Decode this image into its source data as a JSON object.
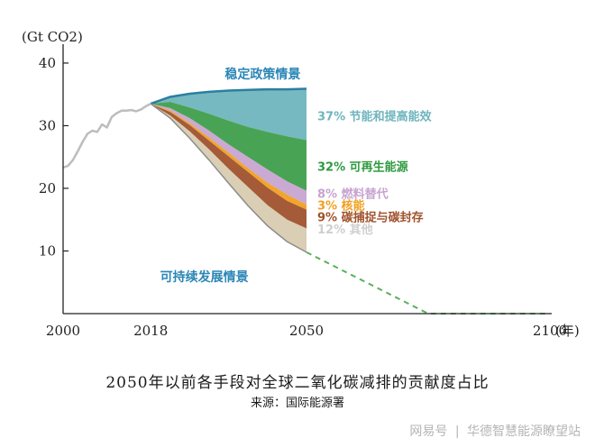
{
  "chart_data": {
    "type": "area",
    "ylabel": "(Gt CO2)",
    "xlabel": "(年)",
    "y_ticks": [
      10,
      20,
      30,
      40
    ],
    "x_ticks": [
      2000,
      2018,
      2050,
      2100
    ],
    "ylim": [
      0,
      41
    ],
    "xlim": [
      2000,
      2100
    ],
    "grid": false,
    "historical": {
      "name": "",
      "x": [
        2000,
        2001,
        2002,
        2003,
        2004,
        2005,
        2006,
        2007,
        2008,
        2009,
        2010,
        2011,
        2012,
        2013,
        2014,
        2015,
        2016,
        2017,
        2018
      ],
      "y": [
        23.3,
        23.6,
        24.5,
        25.9,
        27.4,
        28.7,
        29.2,
        29.0,
        30.2,
        29.7,
        31.4,
        32.0,
        32.4,
        32.4,
        32.5,
        32.3,
        32.6,
        33.1,
        33.5
      ]
    },
    "scenario_x": [
      2018,
      2022,
      2026,
      2030,
      2034,
      2038,
      2042,
      2046,
      2050
    ],
    "stated_policies": {
      "label": "稳定政策情景",
      "y": [
        33.5,
        34.6,
        35.1,
        35.4,
        35.6,
        35.7,
        35.8,
        35.8,
        35.9
      ]
    },
    "sustainable_development": {
      "label": "可持续发展情景",
      "y": [
        33.5,
        31.2,
        28.0,
        24.5,
        20.8,
        17.2,
        14.0,
        11.5,
        9.8
      ]
    },
    "boundaries": [
      [
        33.5,
        34.6,
        35.1,
        35.4,
        35.6,
        35.7,
        35.8,
        35.8,
        35.9
      ],
      [
        33.5,
        33.8,
        32.9,
        31.9,
        30.8,
        29.8,
        29.0,
        28.3,
        27.7
      ],
      [
        33.5,
        32.8,
        31.2,
        29.2,
        27.0,
        25.0,
        23.0,
        21.1,
        19.6
      ],
      [
        33.5,
        32.4,
        30.4,
        28.1,
        25.7,
        23.2,
        20.9,
        19.0,
        17.4
      ],
      [
        33.5,
        32.2,
        30.1,
        27.6,
        25.1,
        22.6,
        20.1,
        18.0,
        16.6
      ],
      [
        33.5,
        31.6,
        29.1,
        26.2,
        23.1,
        20.2,
        17.3,
        15.0,
        13.6
      ],
      [
        33.5,
        31.2,
        28.0,
        24.5,
        20.8,
        17.2,
        14.0,
        11.5,
        9.8
      ]
    ],
    "series": [
      {
        "name": "37% 节能和提高能效",
        "share": 37,
        "color": "#6fb5bd"
      },
      {
        "name": "32% 可再生能源",
        "share": 32,
        "color": "#3f9e4c"
      },
      {
        "name": "8% 燃料替代",
        "share": 8,
        "color": "#c7a4d0"
      },
      {
        "name": "3% 核能",
        "share": 3,
        "color": "#f0a020"
      },
      {
        "name": "9% 碳捕捉与碳封存",
        "share": 9,
        "color": "#a0522d"
      },
      {
        "name": "12% 其他",
        "share": 12,
        "color": "#d8cbb0"
      }
    ],
    "projection_dashed": {
      "x": [
        2050,
        2075,
        2100
      ],
      "y": [
        9.8,
        0,
        0
      ]
    },
    "colors": {
      "historical": "#bdbdbd",
      "stated_line": "#2b7fa0",
      "sustainable_line": "#8c8c8c",
      "dashed": "#5cb05c",
      "axis": "#222222",
      "label_blue": "#2a86b6"
    }
  },
  "caption": {
    "title": "2050年以前各手段对全球二氧化碳减排的贡献度占比",
    "source": "来源：国际能源署"
  },
  "footer": {
    "brand": "网易号",
    "separator": "|",
    "account": "华德智慧能源瞭望站"
  }
}
